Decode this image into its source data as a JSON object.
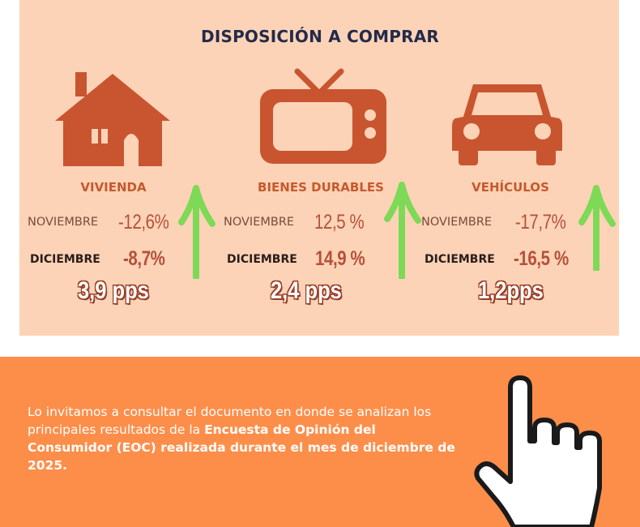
{
  "title": "DISPOSICIÓN A COMPRAR",
  "categories": [
    {
      "label": "VIVIENDA",
      "icon": "house-icon",
      "nov_label": "NOVIEMBRE",
      "nov_value": "-12,6%",
      "dic_label": "DICIEMBRE",
      "dic_value": "-8,7%",
      "change": "3,9 pps",
      "trend": "up-arrow-icon"
    },
    {
      "label": "BIENES DURABLES",
      "icon": "tv-icon",
      "nov_label": "NOVIEMBRE",
      "nov_value": "12,5 %",
      "dic_label": "DICIEMBRE",
      "dic_value": "14,9 %",
      "change": "2,4 pps",
      "trend": "up-arrow-icon"
    },
    {
      "label": "VEHÍCULOS",
      "icon": "car-icon",
      "nov_label": "NOVIEMBRE",
      "nov_value": "-17,7%",
      "dic_label": "DICIEMBRE",
      "dic_value": "-16,5 %",
      "change": "1,2pps",
      "trend": "up-arrow-icon"
    }
  ],
  "cta": {
    "text_plain": "Lo invitamos a consultar el documento en donde se analizan los principales resultados de la ",
    "text_bold": "Encuesta de Opinión del Consumidor (EOC) realizada durante el mes de diciembre de 2025.",
    "icon": "pointing-hand-icon"
  },
  "colors": {
    "top_panel": "#fdd3b7",
    "bottom_panel": "#fd8e4a",
    "icon": "#c8552f",
    "arrow": "#7ed957",
    "title": "#232b4a"
  }
}
